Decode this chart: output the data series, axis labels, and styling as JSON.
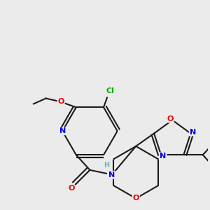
{
  "background_color": "#ebebeb",
  "bond_color": "#1a1a1a",
  "atom_colors": {
    "N": "#0000ee",
    "O": "#ee0000",
    "Cl": "#00aa00",
    "H": "#70b0b0",
    "C": "#1a1a1a"
  },
  "figsize": [
    3.0,
    3.0
  ],
  "dpi": 100
}
